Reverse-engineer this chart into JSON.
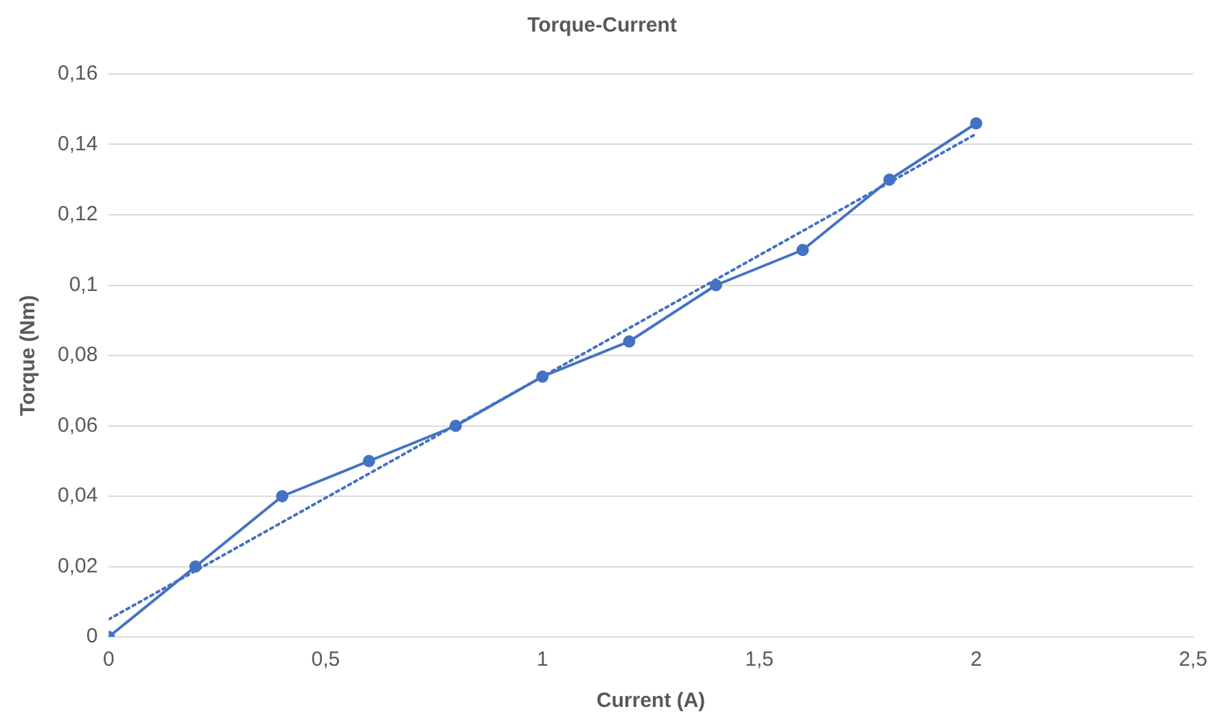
{
  "chart_data": {
    "type": "line",
    "title": "Torque-Current",
    "xlabel": "Current (A)",
    "ylabel": "Torque (Nm)",
    "xlim": [
      0,
      2.5
    ],
    "xticks": [
      0,
      {
        "value": 0.5,
        "label": "0,5"
      },
      1,
      {
        "value": 1.5,
        "label": "1,5"
      },
      2,
      {
        "value": 2.5,
        "label": "2,5"
      }
    ],
    "ylim": [
      0,
      0.16
    ],
    "yticks": [
      0,
      {
        "value": 0.02,
        "label": "0,02"
      },
      {
        "value": 0.04,
        "label": "0,04"
      },
      {
        "value": 0.06,
        "label": "0,06"
      },
      {
        "value": 0.08,
        "label": "0,08"
      },
      {
        "value": 0.1,
        "label": "0,1"
      },
      {
        "value": 0.12,
        "label": "0,12"
      },
      {
        "value": 0.14,
        "label": "0,14"
      },
      {
        "value": 0.16,
        "label": "0,16"
      }
    ],
    "grid": "y",
    "legend": false,
    "series": [
      {
        "color": "#4472c4",
        "marker": "circle",
        "line_style": "solid",
        "x": [
          0,
          0.2,
          0.4,
          0.6,
          0.8,
          1,
          1.2,
          1.4,
          1.6,
          1.8,
          2
        ],
        "values": [
          0,
          0.02,
          0.04,
          0.05,
          0.06,
          0.074,
          0.084,
          0.1,
          0.11,
          0.13,
          0.146
        ]
      },
      {
        "color": "#4472c4",
        "marker": "none",
        "line_style": "dotted",
        "x": [
          0,
          2
        ],
        "values": [
          0.005,
          0.143
        ]
      }
    ]
  }
}
